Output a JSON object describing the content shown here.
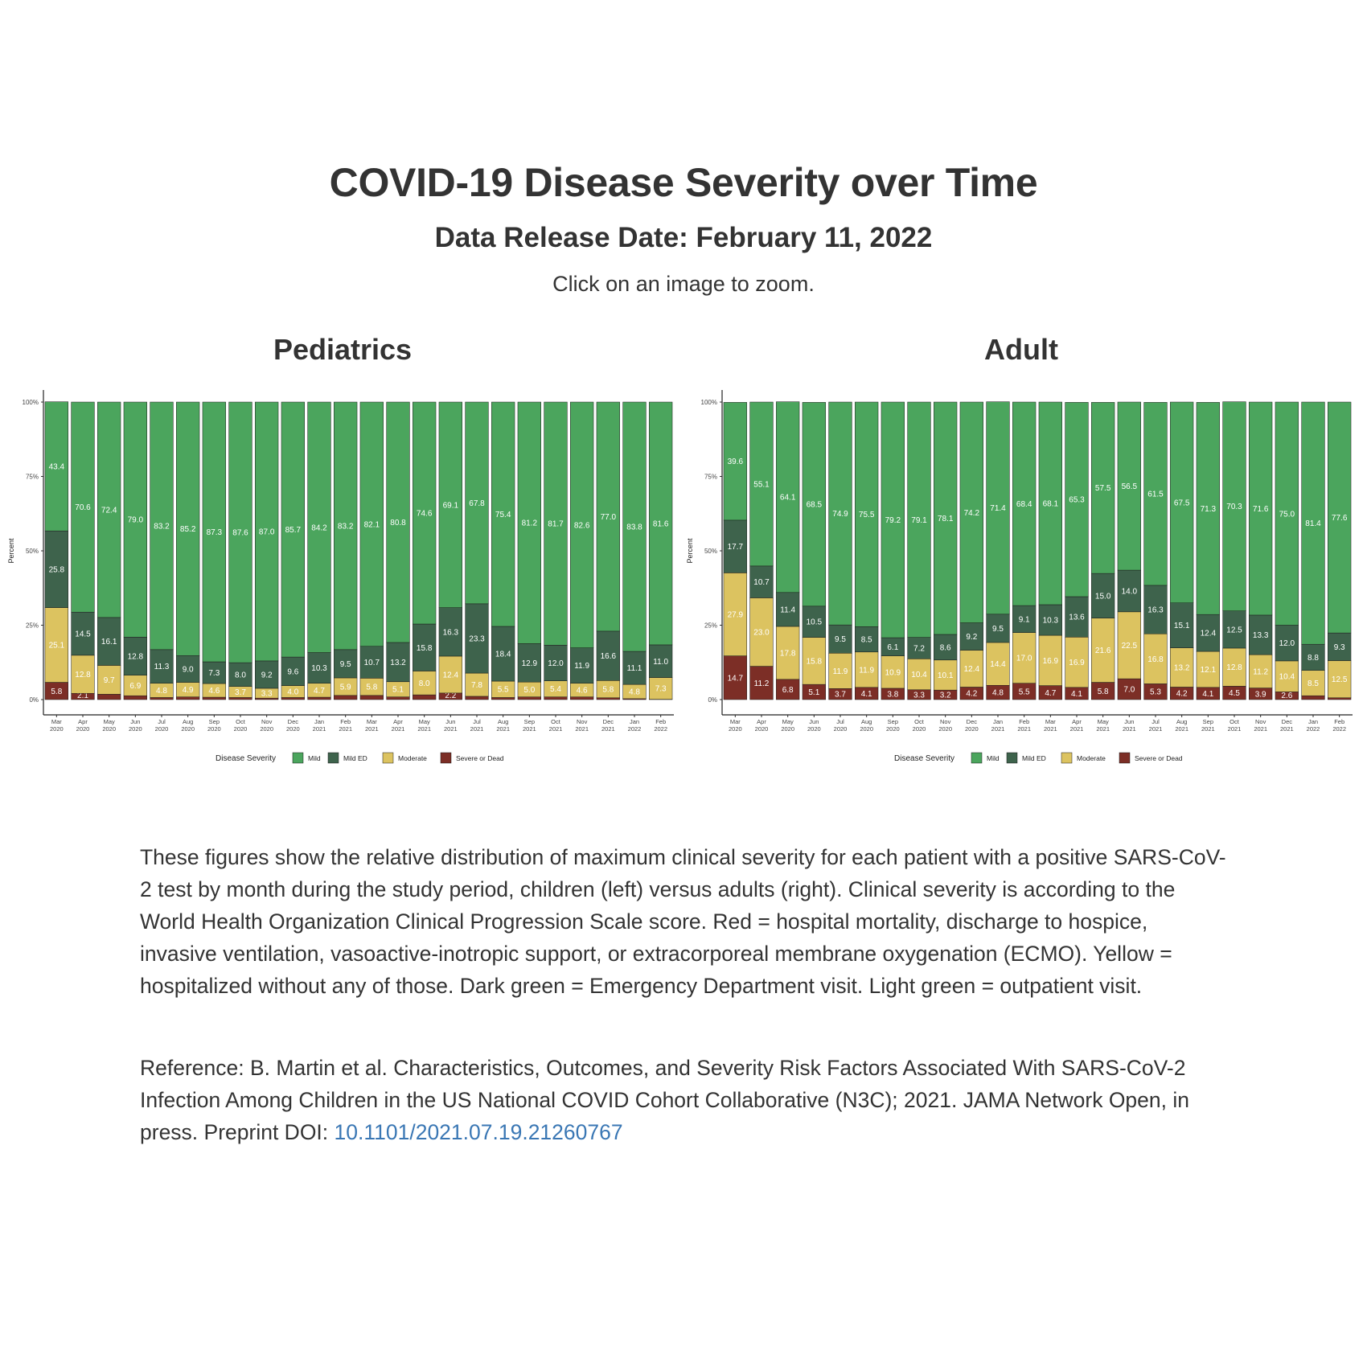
{
  "page": {
    "title": "COVID-19 Disease Severity over Time",
    "subtitle": "Data Release Date: February 11, 2022",
    "hint": "Click on an image to zoom.",
    "description": "These figures show the relative distribution of maximum clinical severity for each patient with a positive SARS-CoV-2 test by month during the study period, children (left) versus adults (right). Clinical severity is according to the World Health Organization Clinical Progression Scale score. Red = hospital mortality, discharge to hospice, invasive ventilation, vasoactive-inotropic support, or extracorporeal membrane oxygenation (ECMO). Yellow = hospitalized without any of those. Dark green = Emergency Department visit. Light green = outpatient visit.",
    "reference_prefix": "Reference: B. Martin et al. Characteristics, Outcomes, and Severity Risk Factors Associated With SARS-CoV-2 Infection Among Children in the US National COVID Cohort Collaborative (N3C); 2021. JAMA Network Open, in press. Preprint DOI: ",
    "doi_text": "10.1101/2021.07.19.21260767"
  },
  "colors": {
    "mild": "#4ba55d",
    "mild_ed": "#3e634c",
    "moderate": "#dcc360",
    "severe": "#7c2e26"
  },
  "chart_data": [
    {
      "type": "bar",
      "stacked": true,
      "title": "Pediatrics",
      "ylabel": "Percent",
      "ylim": [
        0,
        100
      ],
      "yticks": [
        "0%",
        "25%",
        "50%",
        "75%",
        "100%"
      ],
      "legend_title": "Disease Severity",
      "legend_position": "bottom",
      "categories": [
        [
          "Mar",
          "2020"
        ],
        [
          "Apr",
          "2020"
        ],
        [
          "May",
          "2020"
        ],
        [
          "Jun",
          "2020"
        ],
        [
          "Jul",
          "2020"
        ],
        [
          "Aug",
          "2020"
        ],
        [
          "Sep",
          "2020"
        ],
        [
          "Oct",
          "2020"
        ],
        [
          "Nov",
          "2020"
        ],
        [
          "Dec",
          "2020"
        ],
        [
          "Jan",
          "2021"
        ],
        [
          "Feb",
          "2021"
        ],
        [
          "Mar",
          "2021"
        ],
        [
          "Apr",
          "2021"
        ],
        [
          "May",
          "2021"
        ],
        [
          "Jun",
          "2021"
        ],
        [
          "Jul",
          "2021"
        ],
        [
          "Aug",
          "2021"
        ],
        [
          "Sep",
          "2021"
        ],
        [
          "Oct",
          "2021"
        ],
        [
          "Nov",
          "2021"
        ],
        [
          "Dec",
          "2021"
        ],
        [
          "Jan",
          "2022"
        ],
        [
          "Feb",
          "2022"
        ]
      ],
      "series": [
        {
          "name": "Severe or Dead",
          "key": "severe",
          "values": [
            5.8,
            2.1,
            1.8,
            1.3,
            0.7,
            0.9,
            0.8,
            0.7,
            0.5,
            0.7,
            0.8,
            1.4,
            1.4,
            0.9,
            1.6,
            2.2,
            1.1,
            0.7,
            0.9,
            0.9,
            0.9,
            0.6,
            0.3,
            0.1
          ],
          "labels": [
            "5.8",
            "2.1",
            "",
            "",
            "",
            "",
            "",
            "",
            "",
            "",
            "",
            "",
            "",
            "",
            "",
            "2.2",
            "",
            "",
            "",
            "",
            "",
            "",
            "",
            ""
          ]
        },
        {
          "name": "Moderate",
          "key": "moderate",
          "values": [
            25.1,
            12.8,
            9.7,
            6.9,
            4.8,
            4.9,
            4.6,
            3.7,
            3.3,
            4.0,
            4.7,
            5.9,
            5.8,
            5.1,
            8.0,
            12.4,
            7.8,
            5.5,
            5.0,
            5.4,
            4.6,
            5.8,
            4.8,
            7.3
          ],
          "labels": [
            "25.1",
            "12.8",
            "9.7",
            "6.9",
            "4.8",
            "4.9",
            "4.6",
            "3.7",
            "3.3",
            "4.0",
            "4.7",
            "5.9",
            "5.8",
            "5.1",
            "8.0",
            "12.4",
            "7.8",
            "5.5",
            "5.0",
            "5.4",
            "4.6",
            "5.8",
            "4.8",
            "7.3"
          ]
        },
        {
          "name": "Mild ED",
          "key": "mild_ed",
          "values": [
            25.8,
            14.5,
            16.1,
            12.8,
            11.3,
            9.0,
            7.3,
            8.0,
            9.2,
            9.6,
            10.3,
            9.5,
            10.7,
            13.2,
            15.8,
            16.3,
            23.3,
            18.4,
            12.9,
            12.0,
            11.9,
            16.6,
            11.1,
            11.0
          ],
          "labels": [
            "25.8",
            "14.5",
            "16.1",
            "12.8",
            "11.3",
            "9.0",
            "7.3",
            "8.0",
            "9.2",
            "9.6",
            "10.3",
            "9.5",
            "10.7",
            "13.2",
            "15.8",
            "16.3",
            "23.3",
            "18.4",
            "12.9",
            "12.0",
            "11.9",
            "16.6",
            "11.1",
            "11.0"
          ]
        },
        {
          "name": "Mild",
          "key": "mild",
          "values": [
            43.4,
            70.6,
            72.4,
            79.0,
            83.2,
            85.2,
            87.3,
            87.6,
            87.0,
            85.7,
            84.2,
            83.2,
            82.1,
            80.8,
            74.6,
            69.1,
            67.8,
            75.4,
            81.2,
            81.7,
            82.6,
            77.0,
            83.8,
            81.6
          ],
          "labels": [
            "43.4",
            "70.6",
            "72.4",
            "79.0",
            "83.2",
            "85.2",
            "87.3",
            "87.6",
            "87.0",
            "85.7",
            "84.2",
            "83.2",
            "82.1",
            "80.8",
            "74.6",
            "69.1",
            "67.8",
            "75.4",
            "81.2",
            "81.7",
            "82.6",
            "77.0",
            "83.8",
            "81.6"
          ]
        }
      ]
    },
    {
      "type": "bar",
      "stacked": true,
      "title": "Adult",
      "ylabel": "Percent",
      "ylim": [
        0,
        100
      ],
      "yticks": [
        "0%",
        "25%",
        "50%",
        "75%",
        "100%"
      ],
      "legend_title": "Disease Severity",
      "legend_position": "bottom",
      "categories": [
        [
          "Mar",
          "2020"
        ],
        [
          "Apr",
          "2020"
        ],
        [
          "May",
          "2020"
        ],
        [
          "Jun",
          "2020"
        ],
        [
          "Jul",
          "2020"
        ],
        [
          "Aug",
          "2020"
        ],
        [
          "Sep",
          "2020"
        ],
        [
          "Oct",
          "2020"
        ],
        [
          "Nov",
          "2020"
        ],
        [
          "Dec",
          "2020"
        ],
        [
          "Jan",
          "2021"
        ],
        [
          "Feb",
          "2021"
        ],
        [
          "Mar",
          "2021"
        ],
        [
          "Apr",
          "2021"
        ],
        [
          "May",
          "2021"
        ],
        [
          "Jun",
          "2021"
        ],
        [
          "Jul",
          "2021"
        ],
        [
          "Aug",
          "2021"
        ],
        [
          "Sep",
          "2021"
        ],
        [
          "Oct",
          "2021"
        ],
        [
          "Nov",
          "2021"
        ],
        [
          "Dec",
          "2021"
        ],
        [
          "Jan",
          "2022"
        ],
        [
          "Feb",
          "2022"
        ]
      ],
      "series": [
        {
          "name": "Severe or Dead",
          "key": "severe",
          "values": [
            14.7,
            11.2,
            6.8,
            5.1,
            3.7,
            4.1,
            3.8,
            3.3,
            3.2,
            4.2,
            4.8,
            5.5,
            4.7,
            4.1,
            5.8,
            7.0,
            5.3,
            4.2,
            4.1,
            4.5,
            3.9,
            2.6,
            1.3,
            0.6
          ],
          "labels": [
            "14.7",
            "11.2",
            "6.8",
            "5.1",
            "3.7",
            "4.1",
            "3.8",
            "3.3",
            "3.2",
            "4.2",
            "4.8",
            "5.5",
            "4.7",
            "4.1",
            "5.8",
            "7.0",
            "5.3",
            "4.2",
            "4.1",
            "4.5",
            "3.9",
            "2.6",
            "",
            ""
          ]
        },
        {
          "name": "Moderate",
          "key": "moderate",
          "values": [
            27.9,
            23.0,
            17.8,
            15.8,
            11.9,
            11.9,
            10.9,
            10.4,
            10.1,
            12.4,
            14.4,
            17.0,
            16.9,
            16.9,
            21.6,
            22.5,
            16.8,
            13.2,
            12.1,
            12.8,
            11.2,
            10.4,
            8.5,
            12.5
          ],
          "labels": [
            "27.9",
            "23.0",
            "17.8",
            "15.8",
            "11.9",
            "11.9",
            "10.9",
            "10.4",
            "10.1",
            "12.4",
            "14.4",
            "17.0",
            "16.9",
            "16.9",
            "21.6",
            "22.5",
            "16.8",
            "13.2",
            "12.1",
            "12.8",
            "11.2",
            "10.4",
            "8.5",
            "12.5"
          ]
        },
        {
          "name": "Mild ED",
          "key": "mild_ed",
          "values": [
            17.7,
            10.7,
            11.4,
            10.5,
            9.5,
            8.5,
            6.1,
            7.2,
            8.6,
            9.2,
            9.5,
            9.1,
            10.3,
            13.6,
            15.0,
            14.0,
            16.3,
            15.1,
            12.4,
            12.5,
            13.3,
            12.0,
            8.8,
            9.3
          ],
          "labels": [
            "17.7",
            "10.7",
            "11.4",
            "10.5",
            "9.5",
            "8.5",
            "6.1",
            "7.2",
            "8.6",
            "9.2",
            "9.5",
            "9.1",
            "10.3",
            "13.6",
            "15.0",
            "14.0",
            "16.3",
            "15.1",
            "12.4",
            "12.5",
            "13.3",
            "12.0",
            "8.8",
            "9.3"
          ]
        },
        {
          "name": "Mild",
          "key": "mild",
          "values": [
            39.6,
            55.1,
            64.1,
            68.5,
            74.9,
            75.5,
            79.2,
            79.1,
            78.1,
            74.2,
            71.4,
            68.4,
            68.1,
            65.3,
            57.5,
            56.5,
            61.5,
            67.5,
            71.3,
            70.3,
            71.6,
            75.0,
            81.4,
            77.6
          ],
          "labels": [
            "39.6",
            "55.1",
            "64.1",
            "68.5",
            "74.9",
            "75.5",
            "79.2",
            "79.1",
            "78.1",
            "74.2",
            "71.4",
            "68.4",
            "68.1",
            "65.3",
            "57.5",
            "56.5",
            "61.5",
            "67.5",
            "71.3",
            "70.3",
            "71.6",
            "75.0",
            "81.4",
            "77.6"
          ]
        }
      ]
    }
  ]
}
